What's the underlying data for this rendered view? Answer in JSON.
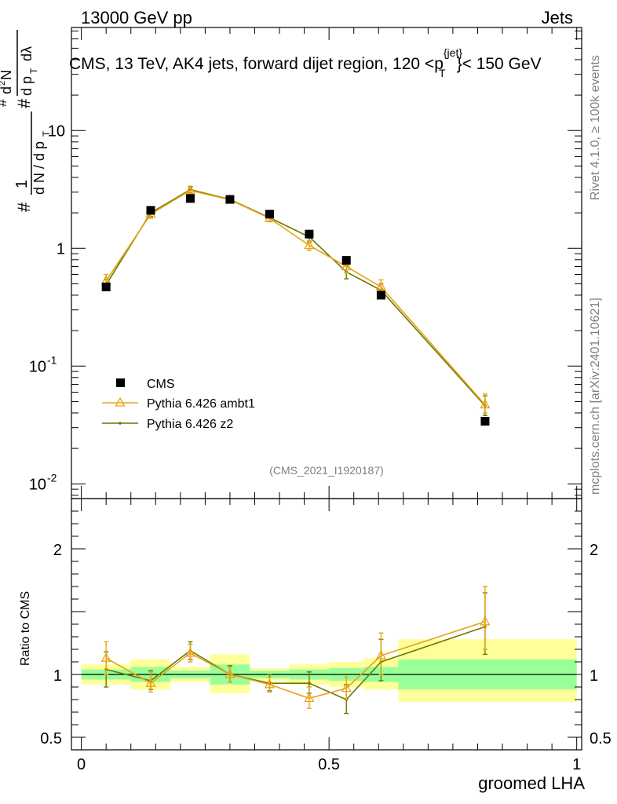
{
  "header": {
    "left_title": "13000 GeV pp",
    "right_title": "Jets",
    "plot_title": "CMS, 13 TeV, AK4 jets, forward dijet region, 120 <p",
    "plot_title_sup": "{jet}",
    "plot_title_sub": "T",
    "plot_title_end": "}< 150 GeV",
    "ref_label": "(CMS_2021_I1920187)"
  },
  "side_labels": {
    "rivet": "Rivet 4.1.0, ≥ 100k events",
    "mcplots": "mcplots.cern.ch [arXiv:2401.10621]"
  },
  "colors": {
    "data": "#000000",
    "ambt1": "#e8a317",
    "z2": "#6b7a00",
    "band_inner": "#99ff99",
    "band_outer": "#ffff99"
  },
  "chart_data": [
    {
      "type": "scatter",
      "panel": "main",
      "title": "CMS, 13 TeV, AK4 jets, forward dijet region, 120 < p_T^{jet} < 150 GeV",
      "xlabel": "groomed LHA",
      "ylabel": "1/(dN/dp_T) d^2N/(dp_T dλ)",
      "yscale": "log",
      "xlim": [
        -0.02,
        1.01
      ],
      "ylim": [
        0.0075,
        75
      ],
      "y_ticks": [
        "10^-2",
        "10^-1",
        "1",
        "10"
      ],
      "x_ticks": [
        "0",
        "0.5",
        "1"
      ],
      "x": [
        0.05,
        0.14,
        0.22,
        0.3,
        0.38,
        0.46,
        0.535,
        0.605,
        0.815
      ],
      "bin_edges": [
        0.0,
        0.1,
        0.18,
        0.26,
        0.34,
        0.42,
        0.5,
        0.57,
        0.64,
        1.0
      ],
      "legend": [
        "CMS",
        "Pythia 6.426 ambt1",
        "Pythia 6.426 z2"
      ],
      "series": [
        {
          "name": "CMS",
          "values": [
            0.47,
            2.1,
            2.65,
            2.6,
            1.95,
            1.32,
            0.79,
            0.4,
            0.034
          ]
        },
        {
          "name": "Pythia 6.426 ambt1",
          "values": [
            0.53,
            1.95,
            3.1,
            2.58,
            1.8,
            1.06,
            0.7,
            0.47,
            0.047
          ],
          "err_lo": [
            0.47,
            1.8,
            2.9,
            2.45,
            1.68,
            0.96,
            0.62,
            0.41,
            0.04
          ],
          "err_hi": [
            0.6,
            2.1,
            3.3,
            2.72,
            1.92,
            1.16,
            0.78,
            0.54,
            0.058
          ]
        },
        {
          "name": "Pythia 6.426 z2",
          "values": [
            0.49,
            2.0,
            3.15,
            2.6,
            1.82,
            1.25,
            0.63,
            0.44,
            0.046
          ],
          "err_lo": [
            0.44,
            1.86,
            2.95,
            2.48,
            1.7,
            1.13,
            0.55,
            0.38,
            0.038
          ],
          "err_hi": [
            0.54,
            2.14,
            3.35,
            2.72,
            1.95,
            1.37,
            0.71,
            0.5,
            0.056
          ]
        }
      ]
    },
    {
      "type": "line",
      "panel": "ratio",
      "ylabel": "Ratio to CMS",
      "xlabel": "groomed LHA",
      "xlim": [
        -0.02,
        1.01
      ],
      "ylim": [
        0.4,
        2.4
      ],
      "y_ticks": [
        "0.5",
        "1",
        "2"
      ],
      "x_ticks": [
        "0",
        "0.5",
        "1"
      ],
      "x": [
        0.05,
        0.14,
        0.22,
        0.3,
        0.38,
        0.46,
        0.535,
        0.605,
        0.815
      ],
      "bands": {
        "bin_edges": [
          0.0,
          0.1,
          0.18,
          0.26,
          0.34,
          0.42,
          0.5,
          0.57,
          0.64,
          1.0
        ],
        "inner_lo": [
          0.96,
          0.94,
          0.97,
          0.92,
          0.97,
          0.96,
          0.95,
          0.94,
          0.88
        ],
        "inner_hi": [
          1.04,
          1.06,
          1.03,
          1.08,
          1.03,
          1.04,
          1.05,
          1.06,
          1.12
        ],
        "outer_lo": [
          0.92,
          0.88,
          0.94,
          0.85,
          0.95,
          0.92,
          0.9,
          0.88,
          0.78
        ],
        "outer_hi": [
          1.08,
          1.12,
          1.06,
          1.16,
          1.05,
          1.08,
          1.1,
          1.13,
          1.28
        ]
      },
      "series": [
        {
          "name": "Pythia 6.426 ambt1",
          "values": [
            1.13,
            0.93,
            1.17,
            1.0,
            0.92,
            0.81,
            0.89,
            1.15,
            1.42
          ],
          "err_lo": [
            1.0,
            0.86,
            1.1,
            0.94,
            0.86,
            0.73,
            0.8,
            1.0,
            1.2
          ],
          "err_hi": [
            1.26,
            1.02,
            1.24,
            1.06,
            0.98,
            0.9,
            0.98,
            1.33,
            1.7
          ]
        },
        {
          "name": "Pythia 6.426 z2",
          "values": [
            1.04,
            0.95,
            1.19,
            1.0,
            0.93,
            0.93,
            0.8,
            1.1,
            1.38
          ],
          "err_lo": [
            0.9,
            0.88,
            1.12,
            0.94,
            0.87,
            0.85,
            0.69,
            0.95,
            1.16
          ],
          "err_hi": [
            1.18,
            1.03,
            1.26,
            1.07,
            1.0,
            1.02,
            0.92,
            1.28,
            1.65
          ]
        }
      ]
    }
  ]
}
